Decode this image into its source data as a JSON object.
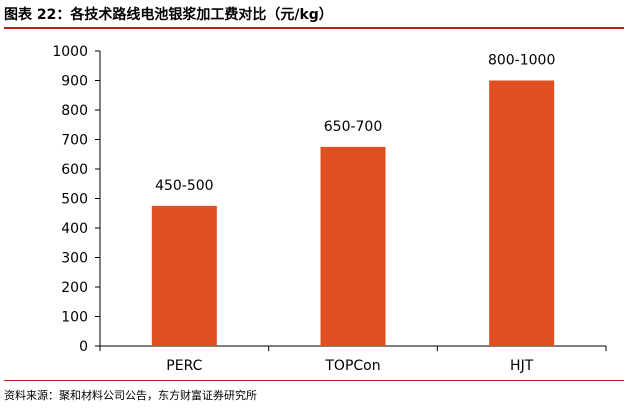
{
  "figure": {
    "title": "图表 22：各技术路线电池银浆加工费对比（元/kg）",
    "source": "资料来源：聚和材料公司公告，东方财富证券研究所"
  },
  "colors": {
    "bar": "#e04f22",
    "axis": "#000000",
    "rule": "#b32218"
  },
  "chart_data": {
    "type": "bar",
    "title": "各技术路线电池银浆加工费对比（元/kg）",
    "categories": [
      "PERC",
      "TOPCon",
      "HJT"
    ],
    "values": [
      475,
      675,
      900
    ],
    "data_labels": [
      "450-500",
      "650-700",
      "800-1000"
    ],
    "ylim": [
      0,
      1000
    ],
    "yticks": [
      0,
      100,
      200,
      300,
      400,
      500,
      600,
      700,
      800,
      900,
      1000
    ],
    "grid": false,
    "legend": "none"
  }
}
